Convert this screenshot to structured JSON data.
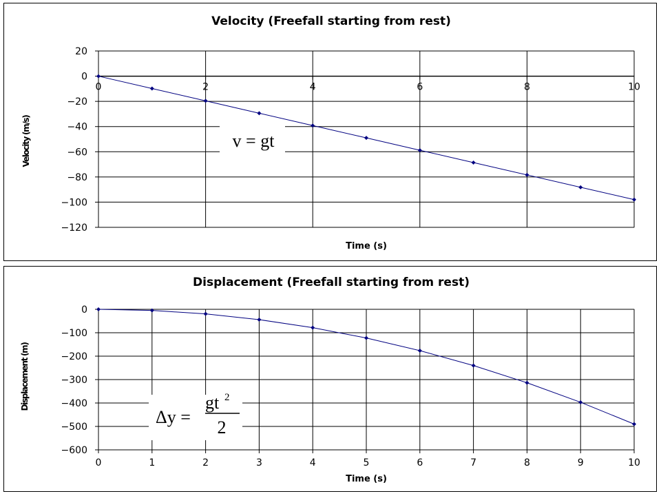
{
  "chart_data": [
    {
      "type": "line",
      "title": "Velocity (Freefall starting from rest)",
      "xlabel": "Time (s)",
      "ylabel": "Velocity (m/s)",
      "xlim": [
        0,
        10
      ],
      "ylim": [
        -120,
        20
      ],
      "x_ticks": [
        0,
        2,
        4,
        6,
        8,
        10
      ],
      "y_ticks": [
        20,
        0,
        -20,
        -40,
        -60,
        -80,
        -100,
        -120
      ],
      "x_tick_labels_position": "on zero line",
      "grid": true,
      "series": [
        {
          "x": [
            0,
            1,
            2,
            3,
            4,
            5,
            6,
            7,
            8,
            9,
            10
          ],
          "y": [
            0,
            -9.8,
            -19.6,
            -29.4,
            -39.2,
            -49,
            -58.8,
            -68.6,
            -78.4,
            -88.2,
            -98
          ],
          "color": "#000080",
          "marker": "diamond"
        }
      ],
      "annotation": {
        "text": "v = gt"
      }
    },
    {
      "type": "line",
      "title": "Displacement (Freefall starting from rest)",
      "xlabel": "Time (s)",
      "ylabel": "Displacement (m)",
      "xlim": [
        0,
        10
      ],
      "ylim": [
        -600,
        0
      ],
      "x_ticks": [
        0,
        1,
        2,
        3,
        4,
        5,
        6,
        7,
        8,
        9,
        10
      ],
      "y_ticks": [
        0,
        -100,
        -200,
        -300,
        -400,
        -500,
        -600
      ],
      "x_tick_labels_position": "bottom",
      "grid": true,
      "series": [
        {
          "x": [
            0,
            1,
            2,
            3,
            4,
            5,
            6,
            7,
            8,
            9,
            10
          ],
          "y": [
            0,
            -4.9,
            -19.6,
            -44.1,
            -78.4,
            -122.5,
            -176.4,
            -240.1,
            -313.6,
            -396.9,
            -490
          ],
          "color": "#000080",
          "marker": "diamond"
        }
      ],
      "annotation": {
        "lhs": "Δy =",
        "numerator": "gt",
        "exponent": "2",
        "denominator": "2"
      }
    }
  ]
}
